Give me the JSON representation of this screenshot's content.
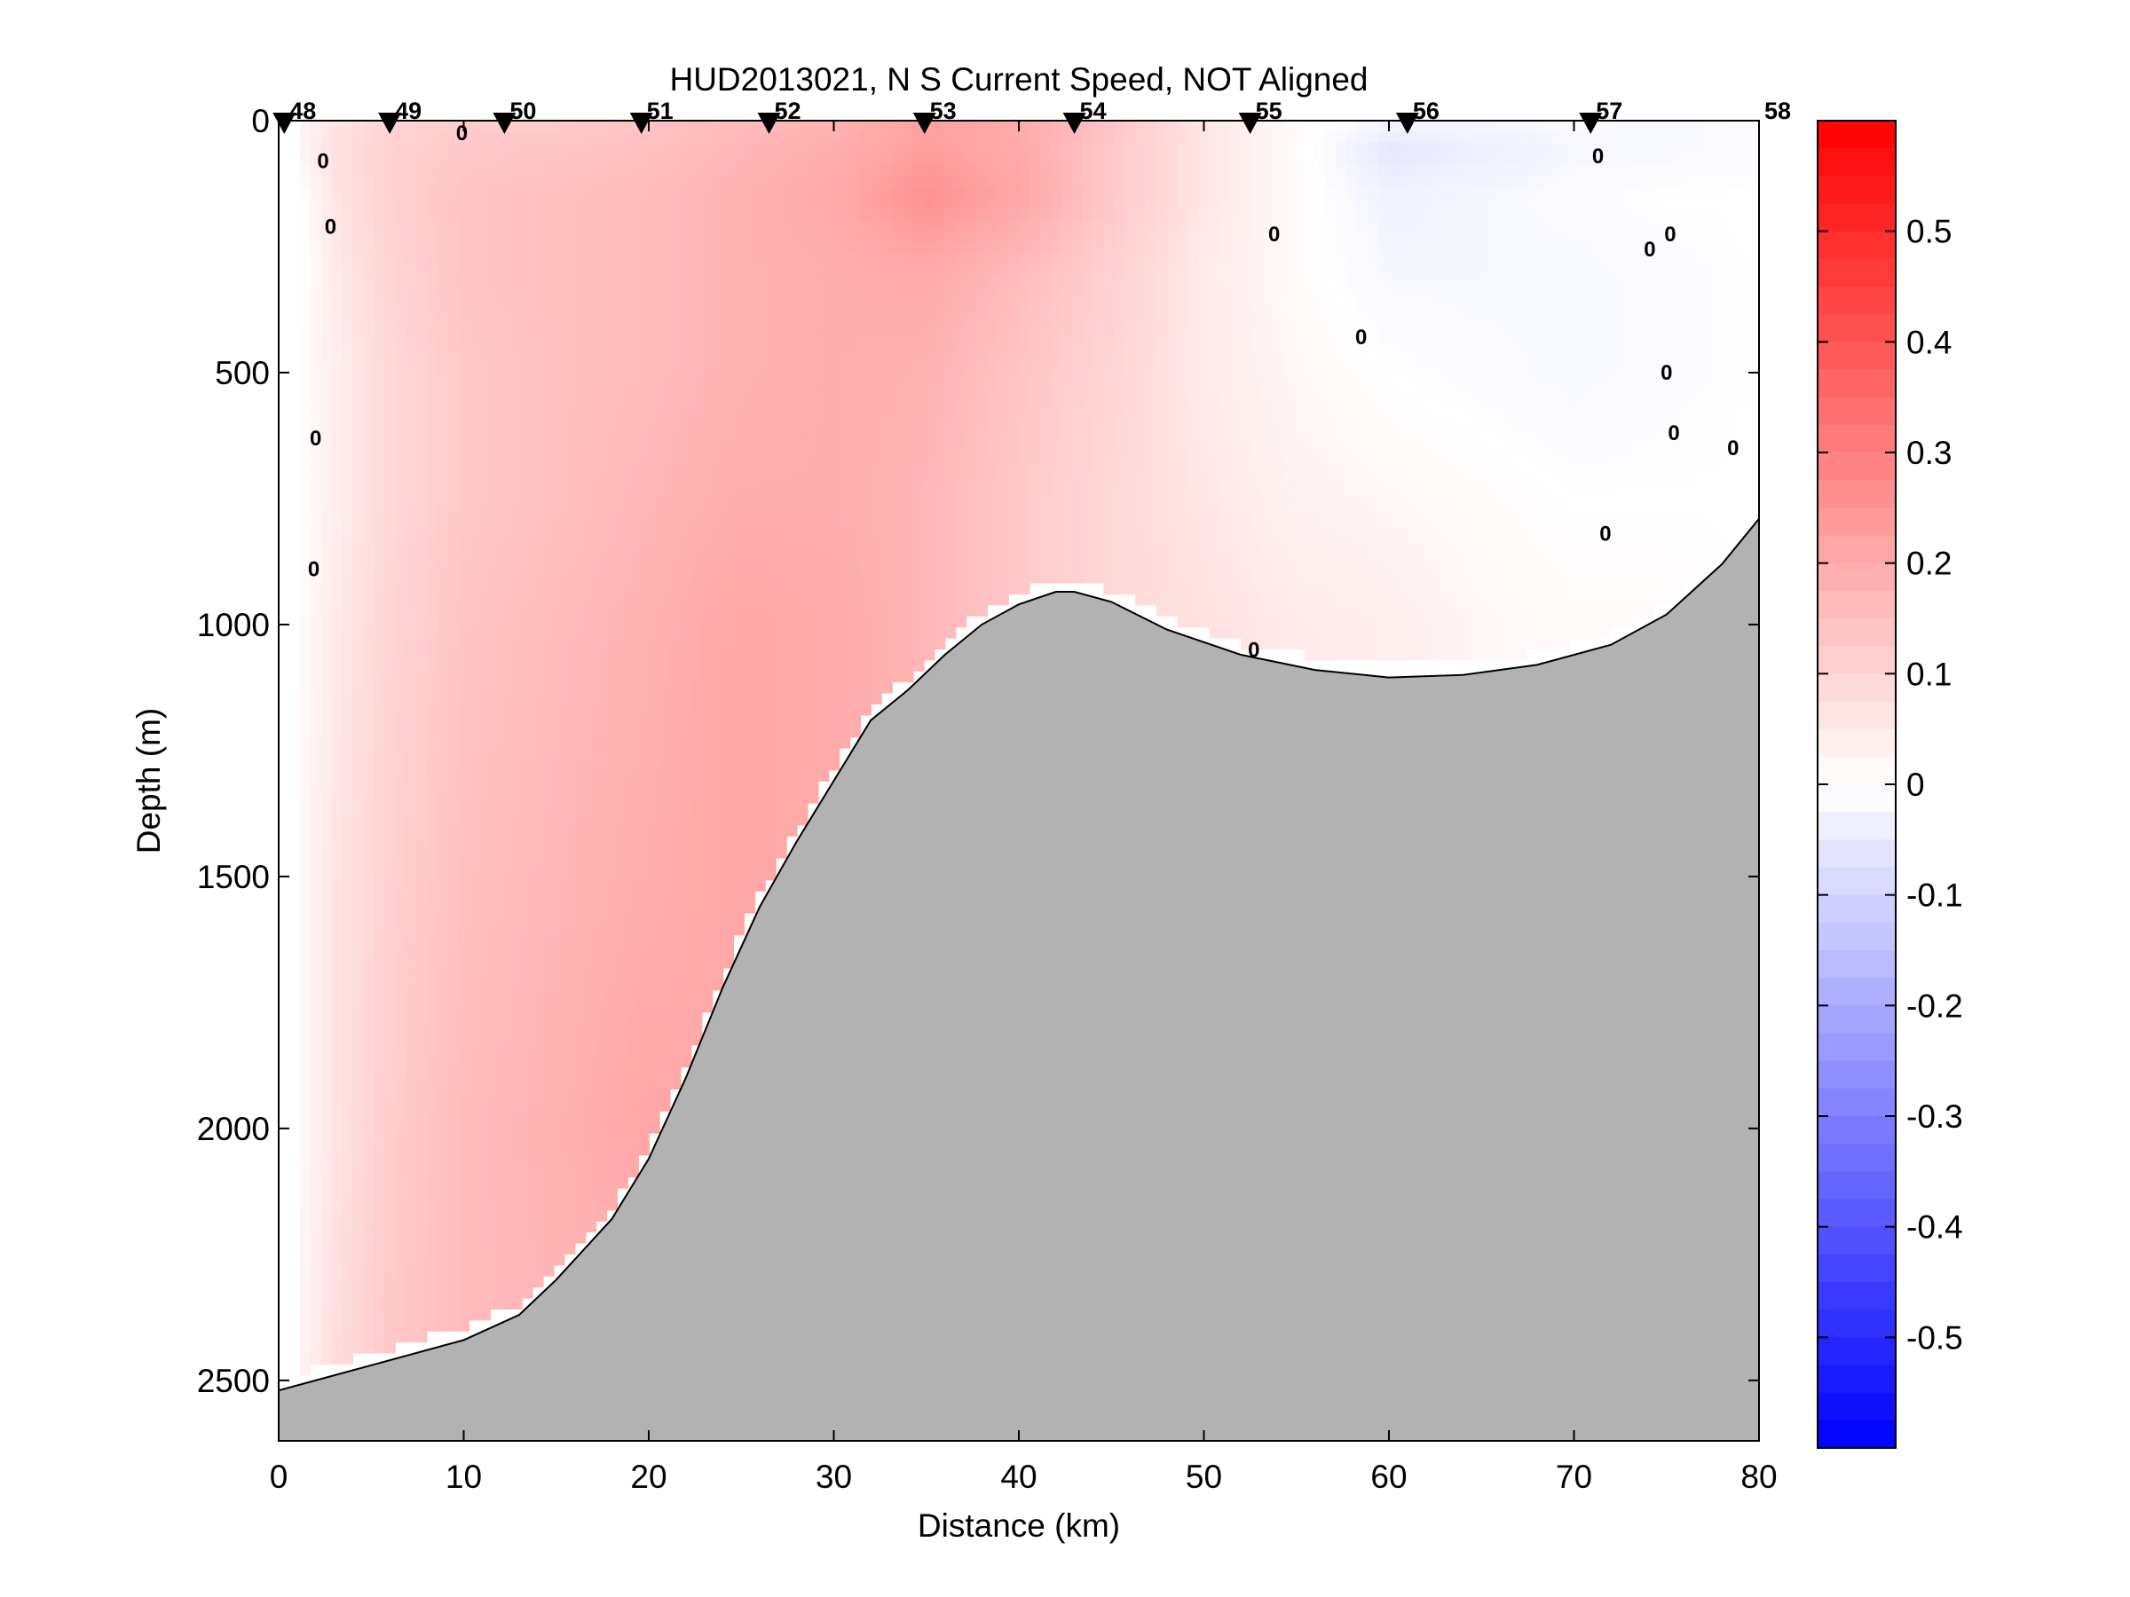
{
  "chart_data": {
    "type": "heatmap",
    "title": "HUD2013021, N S Current Speed, NOT Aligned",
    "xlabel": "Distance (km)",
    "ylabel": "Depth (m)",
    "xlim": [
      0,
      80
    ],
    "ylim": [
      2620,
      0
    ],
    "y_reversed": true,
    "x_ticks": [
      0,
      10,
      20,
      30,
      40,
      50,
      60,
      70,
      80
    ],
    "y_ticks": [
      0,
      500,
      1000,
      1500,
      2000,
      2500
    ],
    "colorbar": {
      "min": -0.6,
      "max": 0.6,
      "ticks": [
        0.5,
        0.4,
        0.3,
        0.2,
        0.1,
        0,
        -0.1,
        -0.2,
        -0.3,
        -0.4,
        -0.5
      ],
      "colormap": "blue-white-red",
      "colors": {
        "low": "#0000ff",
        "mid": "#ffffff",
        "high": "#ff0000"
      }
    },
    "stations": [
      {
        "label": "48",
        "x": 0.3
      },
      {
        "label": "49",
        "x": 6.0
      },
      {
        "label": "50",
        "x": 12.2
      },
      {
        "label": "51",
        "x": 19.6
      },
      {
        "label": "52",
        "x": 26.5
      },
      {
        "label": "53",
        "x": 34.9
      },
      {
        "label": "54",
        "x": 43.0
      },
      {
        "label": "55",
        "x": 52.5
      },
      {
        "label": "56",
        "x": 61.0
      },
      {
        "label": "57",
        "x": 70.9
      },
      {
        "label": "58",
        "x": 80.0
      }
    ],
    "bathymetry": {
      "x": [
        0,
        5,
        10,
        13,
        15,
        18,
        20,
        22,
        24,
        26,
        28,
        30,
        32,
        34,
        36,
        38,
        40,
        42,
        43,
        45,
        48,
        52,
        56,
        60,
        64,
        68,
        72,
        75,
        78,
        80
      ],
      "depth": [
        2520,
        2470,
        2420,
        2370,
        2300,
        2180,
        2060,
        1900,
        1720,
        1560,
        1430,
        1310,
        1190,
        1130,
        1060,
        1000,
        960,
        935,
        935,
        955,
        1010,
        1060,
        1090,
        1105,
        1100,
        1080,
        1040,
        980,
        880,
        790
      ]
    },
    "speed_field": {
      "x": [
        0,
        1,
        3,
        6,
        10,
        15,
        20,
        25,
        30,
        35,
        40,
        45,
        50,
        55,
        60,
        65,
        70,
        75,
        80
      ],
      "depth": [
        0,
        60,
        150,
        300,
        500,
        750,
        1000,
        1500,
        2000,
        2500
      ],
      "values": [
        [
          0.0,
          0.02,
          0.06,
          0.1,
          0.12,
          0.12,
          0.14,
          0.16,
          0.18,
          0.22,
          0.2,
          0.14,
          0.06,
          0.01,
          -0.02,
          -0.02,
          -0.01,
          -0.02,
          -0.01
        ],
        [
          0.0,
          0.02,
          0.07,
          0.11,
          0.13,
          0.14,
          0.15,
          0.17,
          0.19,
          0.23,
          0.2,
          0.13,
          0.06,
          0.01,
          -0.06,
          -0.04,
          -0.02,
          -0.02,
          -0.01
        ],
        [
          0.0,
          -0.01,
          0.06,
          0.11,
          0.14,
          0.15,
          0.16,
          0.18,
          0.2,
          0.26,
          0.21,
          0.13,
          0.06,
          0.01,
          -0.03,
          -0.02,
          -0.01,
          0.0,
          0.0
        ],
        [
          0.0,
          -0.01,
          0.05,
          0.1,
          0.14,
          0.15,
          0.16,
          0.18,
          0.19,
          0.2,
          0.16,
          0.11,
          0.05,
          0.01,
          -0.02,
          -0.02,
          -0.02,
          -0.01,
          0.0
        ],
        [
          0.0,
          0.0,
          0.04,
          0.09,
          0.13,
          0.15,
          0.16,
          0.18,
          0.19,
          0.18,
          0.14,
          0.1,
          0.05,
          0.02,
          0.0,
          -0.01,
          -0.02,
          -0.01,
          0.0
        ],
        [
          0.0,
          0.0,
          0.04,
          0.09,
          0.13,
          0.15,
          0.17,
          0.19,
          0.19,
          0.17,
          0.13,
          0.09,
          0.06,
          0.03,
          0.02,
          0.01,
          0.0,
          0.0,
          0.0
        ],
        [
          0.0,
          0.0,
          0.05,
          0.1,
          0.14,
          0.16,
          0.18,
          0.21,
          0.2,
          0.17,
          0.13,
          0.09,
          0.07,
          0.05,
          0.04,
          0.02,
          0.01,
          0.01,
          0.0
        ],
        [
          0.0,
          0.01,
          0.06,
          0.11,
          0.15,
          0.17,
          0.19,
          0.21,
          0.2,
          0.17,
          0.13,
          0.09,
          0.07,
          0.05,
          0.04,
          0.02,
          0.01,
          0.01,
          0.0
        ],
        [
          0.0,
          0.01,
          0.06,
          0.12,
          0.16,
          0.18,
          0.21,
          0.2,
          0.18,
          0.15,
          0.12,
          0.09,
          0.07,
          0.05,
          0.04,
          0.02,
          0.01,
          0.01,
          0.0
        ],
        [
          0.0,
          0.02,
          0.08,
          0.13,
          0.16,
          0.17,
          0.19,
          0.18,
          0.16,
          0.14,
          0.12,
          0.09,
          0.07,
          0.05,
          0.04,
          0.02,
          0.01,
          0.01,
          0.0
        ]
      ]
    },
    "zero_contour_labels": [
      {
        "x": 9.9,
        "depth": 25,
        "text": "0"
      },
      {
        "x": 2.4,
        "depth": 80,
        "text": "0"
      },
      {
        "x": 2.8,
        "depth": 210,
        "text": "0"
      },
      {
        "x": 2.0,
        "depth": 630,
        "text": "0"
      },
      {
        "x": 1.9,
        "depth": 890,
        "text": "0"
      },
      {
        "x": 53.8,
        "depth": 225,
        "text": "0"
      },
      {
        "x": 58.5,
        "depth": 430,
        "text": "0"
      },
      {
        "x": 71.3,
        "depth": 70,
        "text": "0"
      },
      {
        "x": 75.2,
        "depth": 225,
        "text": "0"
      },
      {
        "x": 74.1,
        "depth": 255,
        "text": "0"
      },
      {
        "x": 75.0,
        "depth": 500,
        "text": "0"
      },
      {
        "x": 75.4,
        "depth": 620,
        "text": "0"
      },
      {
        "x": 78.6,
        "depth": 650,
        "text": "0"
      },
      {
        "x": 71.7,
        "depth": 820,
        "text": "0"
      },
      {
        "x": 52.7,
        "depth": 1050,
        "text": "0"
      }
    ]
  }
}
